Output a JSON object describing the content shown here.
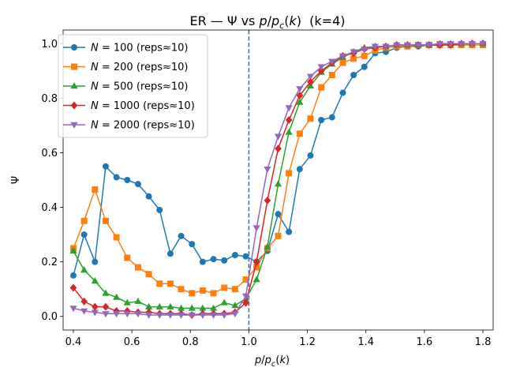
{
  "chart_data": {
    "type": "line",
    "title": "ER — Ψ vs p/p_c(k)  (k=4)",
    "title_parts": {
      "prefix": "ER — Ψ vs ",
      "ratio_p": "p",
      "slash": "/",
      "pc_p": "p",
      "pc_sub": "c",
      "paren_open": "(",
      "k": "k",
      "paren_close": ")",
      "suffix": "  (k=4)"
    },
    "xlabel": "p/p_c(k)",
    "xlabel_parts": {
      "ratio_p": "p",
      "slash": "/",
      "pc_p": "p",
      "pc_sub": "c",
      "paren_open": "(",
      "k": "k",
      "paren_close": ")"
    },
    "ylabel": "Ψ",
    "xlim": [
      0.365,
      1.835
    ],
    "ylim": [
      -0.05,
      1.05
    ],
    "xticks": [
      0.4,
      0.6,
      0.8,
      1.0,
      1.2,
      1.4,
      1.6,
      1.8
    ],
    "xtick_labels": [
      "0.4",
      "0.6",
      "0.8",
      "1.0",
      "1.2",
      "1.4",
      "1.6",
      "1.8"
    ],
    "yticks": [
      0.0,
      0.2,
      0.4,
      0.6,
      0.8,
      1.0
    ],
    "ytick_labels": [
      "0.0",
      "0.2",
      "0.4",
      "0.6",
      "0.8",
      "1.0"
    ],
    "vline": {
      "x": 1.0,
      "style": "dashed",
      "color": "#1f77b4"
    },
    "legend_position": "upper-left",
    "x": [
      0.4,
      0.4368,
      0.4737,
      0.5105,
      0.5474,
      0.5842,
      0.6211,
      0.6579,
      0.6947,
      0.7316,
      0.7684,
      0.8053,
      0.8421,
      0.8789,
      0.9158,
      0.9526,
      0.9895,
      1.0263,
      1.0632,
      1.1,
      1.1368,
      1.1737,
      1.2105,
      1.2474,
      1.2842,
      1.3211,
      1.3579,
      1.3947,
      1.4316,
      1.4684,
      1.5053,
      1.5421,
      1.5789,
      1.6158,
      1.6526,
      1.6895,
      1.7263,
      1.7632,
      1.8
    ],
    "series": [
      {
        "name_var": "N",
        "name_rest": " = 100 (reps≈10)",
        "color": "#1f77b4",
        "marker": "circle",
        "values": [
          0.15,
          0.3,
          0.2,
          0.55,
          0.51,
          0.5,
          0.485,
          0.44,
          0.39,
          0.23,
          0.295,
          0.265,
          0.2,
          0.21,
          0.205,
          0.225,
          0.22,
          0.2,
          0.24,
          0.375,
          0.31,
          0.54,
          0.59,
          0.72,
          0.73,
          0.82,
          0.885,
          0.915,
          0.965,
          0.97,
          0.985,
          0.99,
          0.99,
          0.995,
          0.995,
          0.995,
          0.995,
          1.0,
          1.0
        ]
      },
      {
        "name_var": "N",
        "name_rest": " = 200 (reps≈10)",
        "color": "#ff7f0e",
        "marker": "square",
        "values": [
          0.25,
          0.35,
          0.465,
          0.35,
          0.29,
          0.215,
          0.18,
          0.155,
          0.12,
          0.12,
          0.1,
          0.085,
          0.095,
          0.085,
          0.105,
          0.1,
          0.135,
          0.18,
          0.25,
          0.295,
          0.525,
          0.67,
          0.725,
          0.84,
          0.885,
          0.93,
          0.945,
          0.955,
          0.975,
          0.985,
          0.99,
          0.99,
          0.995,
          0.995,
          0.995,
          0.995,
          0.995,
          0.995,
          0.995
        ]
      },
      {
        "name_var": "N",
        "name_rest": " = 500 (reps≈10)",
        "color": "#2ca02c",
        "marker": "triangle-up",
        "values": [
          0.24,
          0.17,
          0.13,
          0.085,
          0.07,
          0.05,
          0.055,
          0.035,
          0.035,
          0.035,
          0.03,
          0.03,
          0.03,
          0.03,
          0.05,
          0.04,
          0.065,
          0.135,
          0.255,
          0.485,
          0.675,
          0.785,
          0.845,
          0.895,
          0.925,
          0.95,
          0.97,
          0.985,
          0.99,
          0.99,
          0.995,
          0.995,
          0.995,
          0.995,
          1.0,
          1.0,
          1.0,
          1.0,
          1.0
        ]
      },
      {
        "name_var": "N",
        "name_rest": " = 1000 (reps≈10)",
        "color": "#d62728",
        "marker": "diamond",
        "values": [
          0.105,
          0.055,
          0.035,
          0.035,
          0.02,
          0.02,
          0.015,
          0.015,
          0.01,
          0.01,
          0.01,
          0.005,
          0.01,
          0.01,
          0.01,
          0.015,
          0.05,
          0.2,
          0.425,
          0.615,
          0.72,
          0.81,
          0.86,
          0.9,
          0.93,
          0.955,
          0.965,
          0.98,
          0.985,
          0.99,
          0.995,
          0.995,
          0.995,
          0.995,
          0.995,
          0.995,
          1.0,
          1.0,
          1.0
        ]
      },
      {
        "name_var": "N",
        "name_rest": " = 2000 (reps≈10)",
        "color": "#9467bd",
        "marker": "triangle-down",
        "values": [
          0.03,
          0.02,
          0.015,
          0.01,
          0.01,
          0.01,
          0.01,
          0.005,
          0.005,
          0.005,
          0.005,
          0.005,
          0.005,
          0.005,
          0.005,
          0.01,
          0.075,
          0.325,
          0.54,
          0.66,
          0.765,
          0.835,
          0.88,
          0.915,
          0.935,
          0.955,
          0.97,
          0.98,
          0.99,
          0.99,
          0.995,
          0.995,
          0.995,
          0.995,
          1.0,
          1.0,
          1.0,
          1.0,
          1.0
        ]
      }
    ]
  }
}
